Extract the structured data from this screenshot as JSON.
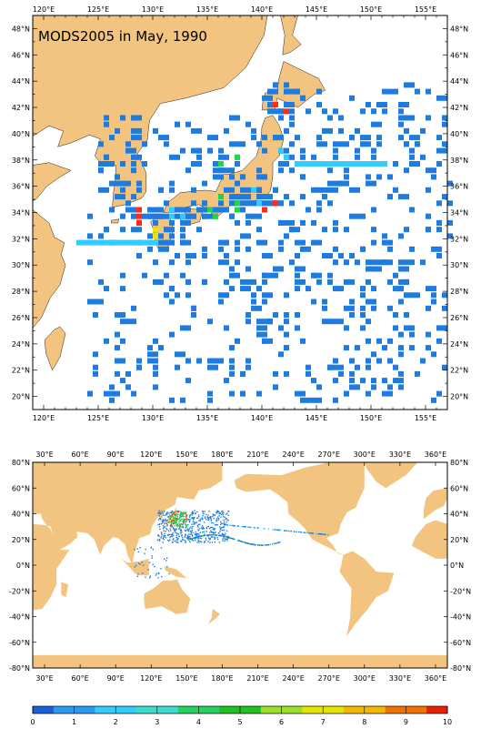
{
  "title": "MODS2005 in May, 1990",
  "colors": {
    "land": "#f2c480",
    "ocean": "#ffffff",
    "frame": "#000000",
    "dot_dense": "#ff2a1a",
    "dot_main": "#1e7be0",
    "dot_light": "#33ccff",
    "dot_mid": "#22d64a",
    "dot_yellow": "#e8e600"
  },
  "regional_map": {
    "lon_range": [
      119,
      157
    ],
    "lat_range": [
      19,
      49
    ],
    "top_lon_labels": [
      "120°E",
      "125°E",
      "130°E",
      "135°E",
      "140°E",
      "145°E",
      "150°E",
      "155°E"
    ],
    "bottom_lon_labels": [
      "120°E",
      "125°E",
      "130°E",
      "135°E",
      "140°E",
      "145°E",
      "150°E",
      "155°E"
    ],
    "lat_labels": [
      "48°N",
      "46°N",
      "44°N",
      "42°N",
      "40°N",
      "38°N",
      "36°N",
      "34°N",
      "32°N",
      "30°N",
      "28°N",
      "26°N",
      "24°N",
      "22°N",
      "20°N"
    ]
  },
  "global_map": {
    "lon_range": [
      20,
      370
    ],
    "lat_range": [
      -80,
      80
    ],
    "lon_labels": [
      "30°E",
      "60°E",
      "90°E",
      "120°E",
      "150°E",
      "180°E",
      "210°E",
      "240°E",
      "270°E",
      "300°E",
      "330°E",
      "360°E"
    ],
    "lat_labels": [
      "80°N",
      "60°N",
      "40°N",
      "20°N",
      "0°N",
      "-20°N",
      "-40°N",
      "-60°N",
      "-80°N"
    ]
  },
  "colorbar": {
    "colors": [
      "#1a5fd8",
      "#2a9bf0",
      "#33ccff",
      "#3ddcd0",
      "#28d060",
      "#22c020",
      "#9be028",
      "#e8e600",
      "#f5b800",
      "#f07000",
      "#e82000"
    ],
    "tick_labels": [
      "0",
      "1",
      "2",
      "3",
      "4",
      "5",
      "6",
      "7",
      "8",
      "9",
      "10"
    ]
  }
}
